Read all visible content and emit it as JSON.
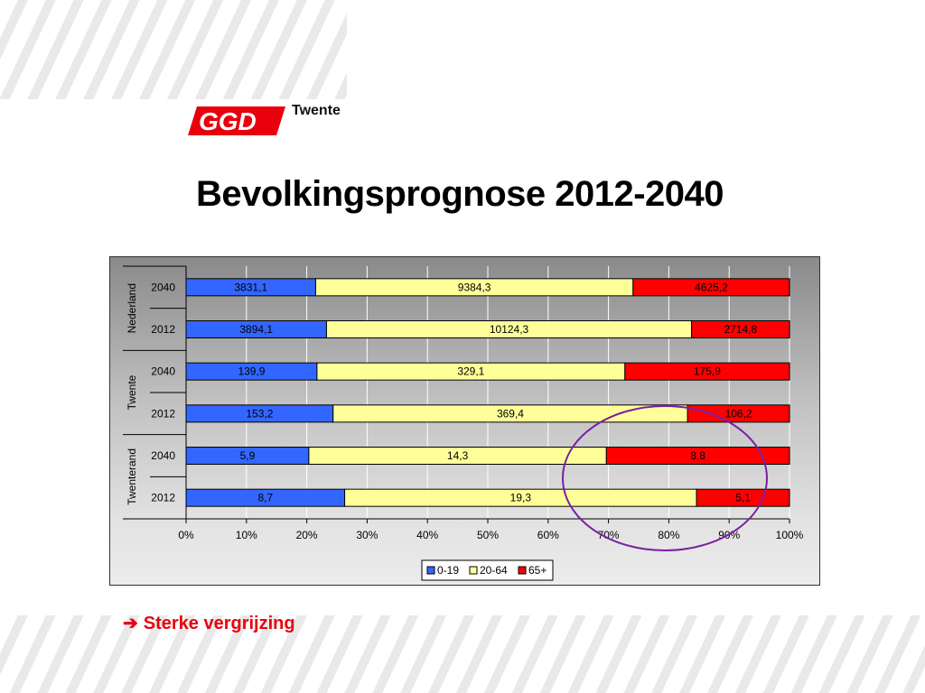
{
  "header": {
    "logo_text": "Twente",
    "title": "Bevolkingsprognose 2012-2040"
  },
  "chart_data": {
    "type": "bar",
    "orientation": "horizontal",
    "stacked": "percent",
    "groups": [
      {
        "label": "Nederland",
        "rows": [
          {
            "label": "2040",
            "values": [
              3831.1,
              9384.3,
              4625.2
            ],
            "labels": [
              "3831,1",
              "9384,3",
              "4625,2"
            ]
          },
          {
            "label": "2012",
            "values": [
              3894.1,
              10124.3,
              2714.8
            ],
            "labels": [
              "3894,1",
              "10124,3",
              "2714,8"
            ]
          }
        ]
      },
      {
        "label": "Twente",
        "rows": [
          {
            "label": "2040",
            "values": [
              139.9,
              329.1,
              175.9
            ],
            "labels": [
              "139,9",
              "329,1",
              "175,9"
            ]
          },
          {
            "label": "2012",
            "values": [
              153.2,
              369.4,
              106.2
            ],
            "labels": [
              "153,2",
              "369,4",
              "106,2"
            ]
          }
        ]
      },
      {
        "label": "Twenterand",
        "rows": [
          {
            "label": "2040",
            "values": [
              5.9,
              14.3,
              8.8
            ],
            "labels": [
              "5,9",
              "14,3",
              "8,8"
            ]
          },
          {
            "label": "2012",
            "values": [
              8.7,
              19.3,
              5.1
            ],
            "labels": [
              "8,7",
              "19,3",
              "5,1"
            ]
          }
        ]
      }
    ],
    "series": [
      {
        "name": "0-19",
        "color": "#3366ff"
      },
      {
        "name": "20-64",
        "color": "#ffff99"
      },
      {
        "name": "65+",
        "color": "#ff0000"
      }
    ],
    "x_ticks": [
      "0%",
      "10%",
      "20%",
      "30%",
      "40%",
      "50%",
      "60%",
      "70%",
      "80%",
      "90%",
      "100%"
    ],
    "xlim": [
      0,
      100
    ],
    "grid": true,
    "legend_position": "bottom",
    "annotation": {
      "shape": "ellipse",
      "color": "#7b1fa2",
      "highlights": "65+ share, Twenterand"
    }
  },
  "footer": {
    "arrow_icon": "right-arrow-icon",
    "conclusion": "Sterke vergrijzing"
  }
}
